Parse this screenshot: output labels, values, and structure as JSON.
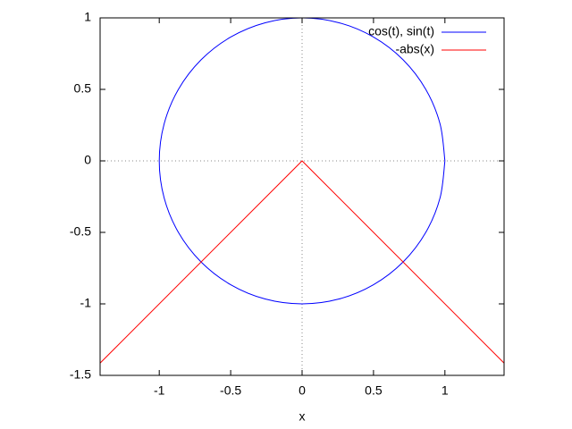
{
  "chart_data": {
    "type": "line",
    "x_label": "x",
    "xlim": [
      -1.4142,
      1.4142
    ],
    "ylim": [
      -1.5,
      1
    ],
    "xticks": [
      -1,
      -0.5,
      0,
      0.5,
      1
    ],
    "yticks": [
      -1.5,
      -1,
      -0.5,
      0,
      0.5,
      1
    ],
    "zeroaxis": true,
    "legend": "top-right",
    "series": [
      {
        "name": "cos(t), sin(t)",
        "color": "#0000ff",
        "smooth": true,
        "x": [
          1,
          0.9659,
          0.866,
          0.7071,
          0.5,
          0.2588,
          0,
          -0.2588,
          -0.5,
          -0.7071,
          -0.866,
          -0.9659,
          -1,
          -0.9659,
          -0.866,
          -0.7071,
          -0.5,
          -0.2588,
          0,
          0.2588,
          0.5,
          0.7071,
          0.866,
          0.9659,
          1
        ],
        "values": [
          0,
          0.2588,
          0.5,
          0.7071,
          0.866,
          0.9659,
          1,
          0.9659,
          0.866,
          0.7071,
          0.5,
          0.2588,
          0,
          -0.2588,
          -0.5,
          -0.7071,
          -0.866,
          -0.9659,
          -1,
          -0.9659,
          -0.866,
          -0.7071,
          -0.5,
          -0.2588,
          0
        ]
      },
      {
        "name": "-abs(x)",
        "color": "#ff0000",
        "smooth": false,
        "x": [
          -1.4142,
          0,
          1.4142
        ],
        "values": [
          -1.4142,
          0,
          -1.4142
        ]
      }
    ]
  }
}
